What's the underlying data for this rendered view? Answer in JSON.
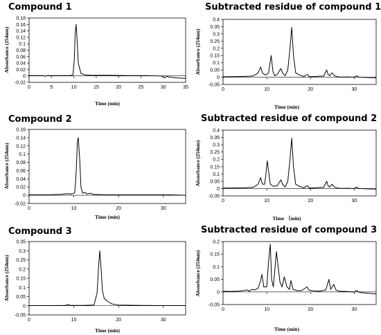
{
  "chart_data": [
    {
      "id": "c1",
      "type": "line",
      "title": "Compound 1",
      "xlabel": "Time (min)",
      "ylabel": "Absorbance (254nm)",
      "xlim": [
        0,
        35
      ],
      "ylim": [
        -0.02,
        0.18
      ],
      "xticks": [
        0,
        5,
        10,
        15,
        20,
        25,
        30,
        35
      ],
      "yticks": [
        -0.02,
        0,
        0.02,
        0.04,
        0.06,
        0.08,
        0.1,
        0.12,
        0.14,
        0.16,
        0.18
      ],
      "series": [
        {
          "color": "#000000",
          "x": [
            0,
            3,
            3.6,
            4,
            6,
            8,
            9,
            9.8,
            10.1,
            10.3,
            10.5,
            10.7,
            11,
            11.6,
            12.5,
            14,
            18,
            22,
            26,
            29.5,
            30.3,
            30.8,
            31.5,
            33,
            35
          ],
          "y": [
            0.001,
            0.001,
            -0.001,
            0.001,
            0.001,
            0.001,
            0.001,
            0.003,
            0.05,
            0.13,
            0.16,
            0.12,
            0.04,
            0.008,
            0.003,
            0.002,
            0.002,
            0.001,
            0.001,
            0.0,
            -0.006,
            -0.001,
            -0.004,
            -0.006,
            -0.008
          ]
        }
      ]
    },
    {
      "id": "r1",
      "type": "line",
      "title": "Subtracted residue of  compound 1",
      "xlabel": "Time (min)",
      "ylabel": "Absorbance (254nm)",
      "xlim": [
        0,
        35
      ],
      "ylim": [
        -0.05,
        0.4
      ],
      "xticks": [
        0,
        10,
        20,
        30
      ],
      "yticks": [
        -0.05,
        0,
        0.05,
        0.1,
        0.15,
        0.2,
        0.25,
        0.3,
        0.35,
        0.4
      ],
      "series": [
        {
          "color": "#000000",
          "x": [
            0,
            2,
            4,
            6,
            7,
            8,
            8.6,
            9,
            9.4,
            9.8,
            10.4,
            11,
            11.4,
            11.8,
            12.4,
            13.2,
            13.6,
            14.2,
            14.8,
            15.3,
            15.7,
            16.1,
            16.6,
            17.5,
            18.5,
            19.3,
            19.7,
            20.3,
            21.5,
            23,
            23.7,
            24,
            24.4,
            24.9,
            25.5,
            26.2,
            27,
            28.5,
            30,
            30.5,
            31,
            33,
            35
          ],
          "y": [
            0.003,
            0.004,
            0.005,
            0.007,
            0.01,
            0.03,
            0.07,
            0.03,
            0.02,
            0.015,
            0.03,
            0.15,
            0.04,
            0.01,
            0.02,
            0.06,
            0.03,
            0.01,
            0.05,
            0.2,
            0.345,
            0.15,
            0.03,
            0.015,
            0.005,
            0.02,
            0.005,
            0.004,
            0.006,
            0.008,
            0.05,
            0.02,
            0.01,
            0.03,
            0.01,
            0.003,
            0.001,
            0.002,
            0.0,
            0.01,
            0.001,
            -0.002,
            -0.004
          ]
        }
      ]
    },
    {
      "id": "c2",
      "type": "line",
      "title": "Compound 2",
      "xlabel": "Time (min)",
      "ylabel": "Absorbance (254nm)",
      "xlim": [
        0,
        35
      ],
      "ylim": [
        -0.02,
        0.16
      ],
      "xticks": [
        0,
        10,
        20,
        30
      ],
      "yticks": [
        -0.02,
        0,
        0.02,
        0.04,
        0.06,
        0.08,
        0.1,
        0.12,
        0.14,
        0.16
      ],
      "series": [
        {
          "color": "#000000",
          "x": [
            0,
            4,
            7,
            8.5,
            9.5,
            10.2,
            10.5,
            10.8,
            11,
            11.3,
            11.6,
            12,
            12.5,
            13,
            13.6,
            14.5,
            18,
            24,
            28,
            32,
            35
          ],
          "y": [
            0.001,
            0.001,
            0.002,
            0.004,
            0.003,
            0.006,
            0.05,
            0.13,
            0.14,
            0.09,
            0.02,
            0.005,
            0.007,
            0.003,
            0.005,
            0.002,
            0.001,
            0.001,
            0.001,
            0.001,
            0.0
          ]
        }
      ]
    },
    {
      "id": "r2",
      "type": "line",
      "title": "Subtracted residue of  compound 2",
      "xlabel": "Time  （min)",
      "ylabel": "Absorbance (254nm)",
      "xlim": [
        0,
        35
      ],
      "ylim": [
        -0.05,
        0.4
      ],
      "xticks": [
        0,
        10,
        20,
        30
      ],
      "yticks": [
        -0.05,
        0,
        0.05,
        0.1,
        0.15,
        0.2,
        0.25,
        0.3,
        0.35,
        0.4
      ],
      "series": [
        {
          "color": "#000000",
          "x": [
            0,
            2,
            4,
            6,
            7,
            8,
            8.6,
            9,
            9.5,
            9.8,
            10.1,
            10.4,
            10.8,
            11.5,
            12.4,
            13.2,
            13.6,
            14.2,
            14.8,
            15.3,
            15.7,
            16.1,
            16.6,
            17.5,
            18.5,
            19.3,
            19.7,
            20.3,
            21.5,
            23,
            23.7,
            24,
            24.4,
            24.9,
            25.5,
            26.2,
            27,
            28.5,
            30,
            30.5,
            31,
            33,
            35
          ],
          "y": [
            0.003,
            0.004,
            0.005,
            0.007,
            0.01,
            0.03,
            0.075,
            0.03,
            0.03,
            0.1,
            0.19,
            0.12,
            0.03,
            0.015,
            0.02,
            0.06,
            0.03,
            0.01,
            0.05,
            0.2,
            0.345,
            0.15,
            0.03,
            0.015,
            0.005,
            0.02,
            0.005,
            0.004,
            0.006,
            0.008,
            0.05,
            0.02,
            0.01,
            0.03,
            0.01,
            0.003,
            0.001,
            0.002,
            0.0,
            0.01,
            0.001,
            -0.002,
            -0.004
          ]
        }
      ]
    },
    {
      "id": "c3",
      "type": "line",
      "title": "Compound 3",
      "xlabel": "Time (min)",
      "ylabel": "Absorbance (254nm)",
      "xlim": [
        0,
        35
      ],
      "ylim": [
        -0.05,
        0.35
      ],
      "xticks": [
        0,
        10,
        20,
        30
      ],
      "yticks": [
        -0.05,
        0,
        0.05,
        0.1,
        0.15,
        0.2,
        0.25,
        0.3,
        0.35
      ],
      "series": [
        {
          "color": "#000000",
          "x": [
            0,
            4,
            8,
            8.8,
            9.3,
            12,
            14.5,
            15.2,
            15.5,
            15.8,
            16.1,
            16.4,
            16.8,
            17.5,
            18.5,
            20,
            25,
            30,
            35
          ],
          "y": [
            0.001,
            0.001,
            0.002,
            0.006,
            0.002,
            0.002,
            0.004,
            0.07,
            0.2,
            0.3,
            0.2,
            0.08,
            0.04,
            0.025,
            0.01,
            0.004,
            0.002,
            0.001,
            0.001
          ]
        }
      ]
    },
    {
      "id": "r3",
      "type": "line",
      "title": "Subtracted residue of  compound 3",
      "xlabel": "Time (min)",
      "ylabel": "Absorbance (254nm)",
      "xlim": [
        0,
        35
      ],
      "ylim": [
        -0.05,
        0.2
      ],
      "xticks": [
        0,
        10,
        20,
        30
      ],
      "yticks": [
        -0.05,
        0,
        0.05,
        0.1,
        0.15,
        0.2
      ],
      "series": [
        {
          "color": "#000000",
          "x": [
            0,
            2,
            4,
            5.5,
            6,
            6.5,
            7.3,
            8,
            8.5,
            8.9,
            9.3,
            10,
            10.4,
            10.8,
            11.1,
            11.5,
            12.2,
            13,
            13.5,
            14,
            14.6,
            15.2,
            15.5,
            16,
            17,
            18,
            19.2,
            19.6,
            20.3,
            22,
            23.5,
            24.2,
            24.6,
            25.3,
            25.8,
            26.5,
            28,
            30,
            30.5,
            31.2,
            33,
            35
          ],
          "y": [
            0.003,
            0.002,
            0.004,
            0.008,
            0.003,
            0.01,
            0.008,
            0.015,
            0.04,
            0.07,
            0.02,
            0.02,
            0.12,
            0.19,
            0.05,
            0.02,
            0.16,
            0.04,
            0.02,
            0.06,
            0.02,
            0.01,
            0.045,
            0.01,
            0.005,
            0.006,
            0.02,
            0.008,
            0.005,
            0.003,
            0.008,
            0.05,
            0.01,
            0.03,
            0.008,
            0.003,
            0.002,
            0.0,
            0.006,
            -0.002,
            -0.005,
            -0.008
          ]
        }
      ]
    }
  ]
}
